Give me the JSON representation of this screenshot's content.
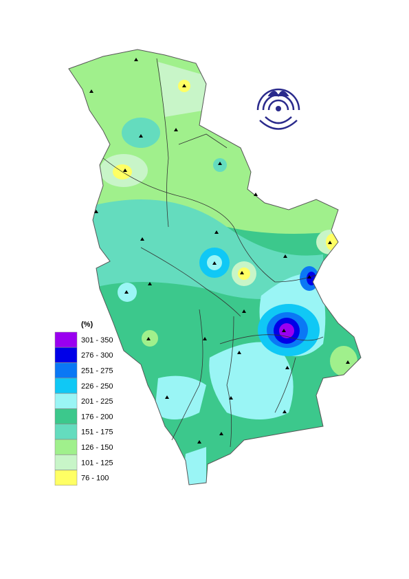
{
  "legend": {
    "title": "(%)",
    "items": [
      {
        "label": "301 - 350",
        "color": "#9a00f0"
      },
      {
        "label": "276 - 300",
        "color": "#0000e8"
      },
      {
        "label": "251 - 275",
        "color": "#0a78f5"
      },
      {
        "label": "226 - 250",
        "color": "#10c8f5"
      },
      {
        "label": "201 - 225",
        "color": "#9af5f5"
      },
      {
        "label": "176 - 200",
        "color": "#3cc88c"
      },
      {
        "label": "151 - 175",
        "color": "#64dcbe"
      },
      {
        "label": "126 - 150",
        "color": "#a0f08c"
      },
      {
        "label": "101 - 125",
        "color": "#c8f5c8"
      },
      {
        "label": "76 - 100",
        "color": "#ffff64"
      }
    ]
  }
}
